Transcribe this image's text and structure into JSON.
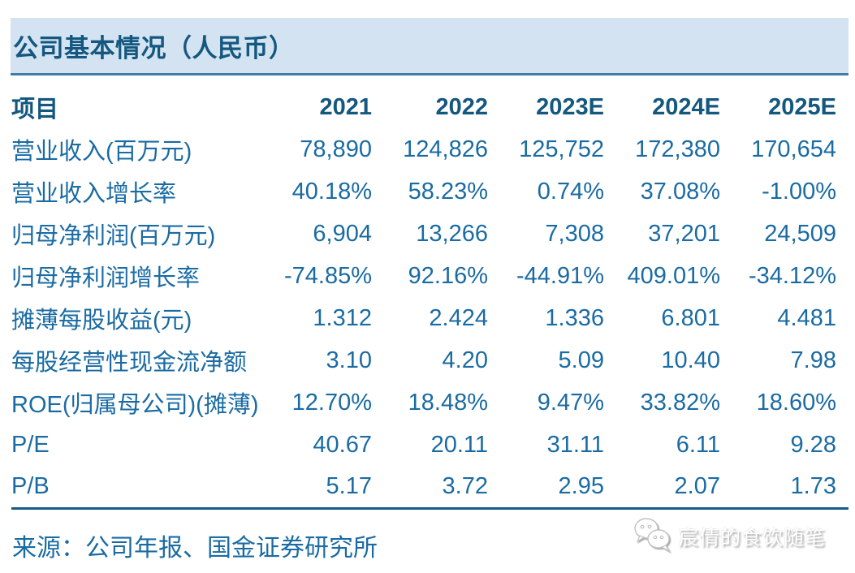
{
  "header": {
    "title": "公司基本情况（人民币）"
  },
  "table": {
    "columns": [
      "项目",
      "2021",
      "2022",
      "2023E",
      "2024E",
      "2025E"
    ],
    "rows": [
      {
        "label": "营业收入(百万元)",
        "values": [
          "78,890",
          "124,826",
          "125,752",
          "172,380",
          "170,654"
        ]
      },
      {
        "label": "营业收入增长率",
        "values": [
          "40.18%",
          "58.23%",
          "0.74%",
          "37.08%",
          "-1.00%"
        ]
      },
      {
        "label": "归母净利润(百万元)",
        "values": [
          "6,904",
          "13,266",
          "7,308",
          "37,201",
          "24,509"
        ]
      },
      {
        "label": "归母净利润增长率",
        "values": [
          "-74.85%",
          "92.16%",
          "-44.91%",
          "409.01%",
          "-34.12%"
        ]
      },
      {
        "label": "摊薄每股收益(元)",
        "values": [
          "1.312",
          "2.424",
          "1.336",
          "6.801",
          "4.481"
        ]
      },
      {
        "label": "每股经营性现金流净额",
        "values": [
          "3.10",
          "4.20",
          "5.09",
          "10.40",
          "7.98"
        ]
      },
      {
        "label": "ROE(归属母公司)(摊薄)",
        "values": [
          "12.70%",
          "18.48%",
          "9.47%",
          "33.82%",
          "18.60%"
        ]
      },
      {
        "label": "P/E",
        "values": [
          "40.67",
          "20.11",
          "31.11",
          "6.11",
          "9.28"
        ]
      },
      {
        "label": "P/B",
        "values": [
          "5.17",
          "3.72",
          "2.95",
          "2.07",
          "1.73"
        ]
      }
    ]
  },
  "footer": {
    "source": "来源：公司年报、国金证券研究所",
    "watermark": "宸倩的食饮随笔",
    "watermark_icon": "wechat-chat-bubbles-icon"
  },
  "colors": {
    "title_band_bg": "#d3e3f1",
    "band_border": "#447ba6",
    "title_text": "#14577f",
    "header_text": "#14577f",
    "body_text": "#1a6ba3",
    "table_bottom_border": "#175a84"
  }
}
